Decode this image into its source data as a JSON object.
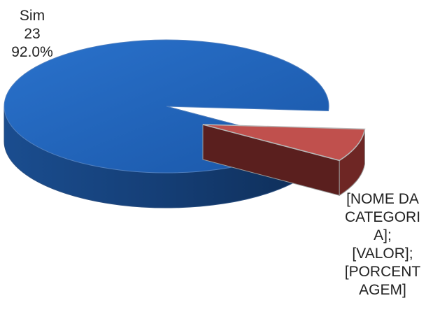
{
  "chart_data": {
    "type": "pie",
    "style": "3d-exploded",
    "slices": [
      {
        "label": "Sim",
        "value": 23,
        "percent": "92.0%",
        "color": "#1f5fb5",
        "side_color": "#143f7a",
        "exploded": false
      },
      {
        "label": "",
        "value": 2,
        "percent": "8.0%",
        "color": "#c0504d",
        "side_color": "#6e2624",
        "exploded": true,
        "label_lines": [
          "[NOME DA",
          "CATEGORI",
          "A];",
          "[VALOR];",
          "[PORCENT",
          "AGEM]"
        ]
      }
    ]
  },
  "labels": {
    "sim": {
      "name": "Sim",
      "value": "23",
      "percent": "92.0%"
    },
    "other": {
      "line1": "[NOME DA",
      "line2": "CATEGORI",
      "line3": "A];",
      "line4": "[VALOR];",
      "line5": "[PORCENT",
      "line6": "AGEM]"
    }
  }
}
